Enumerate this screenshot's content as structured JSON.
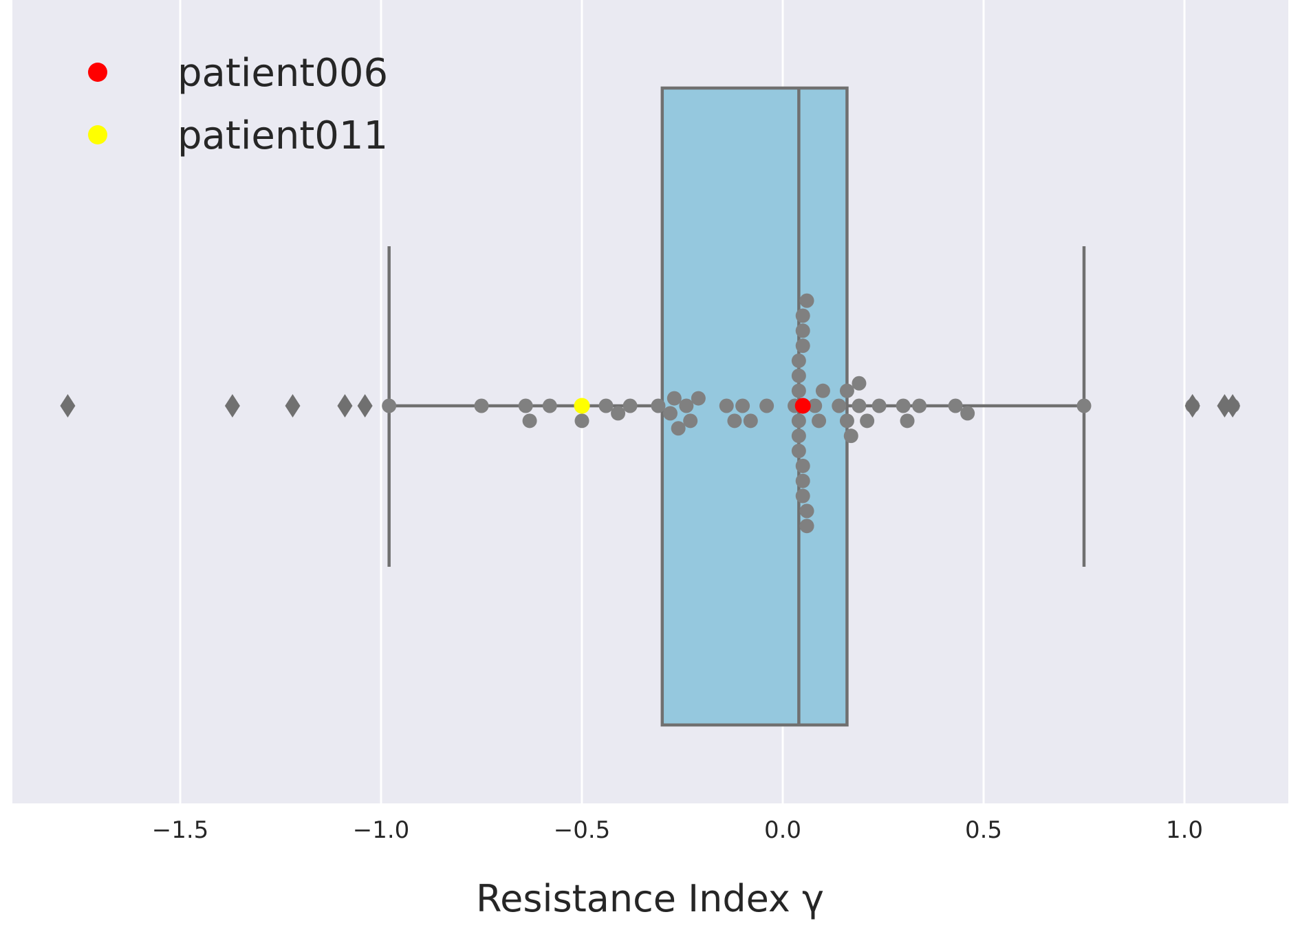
{
  "chart_data": {
    "type": "box",
    "orientation": "horizontal",
    "xlabel": "Resistance Index γ",
    "xlim": [
      -1.88,
      1.26
    ],
    "xticks": [
      -1.5,
      -1.0,
      -0.5,
      0.0,
      0.5,
      1.0
    ],
    "xtick_labels": [
      "−1.5",
      "−1.0",
      "−0.5",
      "0.0",
      "0.5",
      "1.0"
    ],
    "grid": true,
    "legend_position": "top-left",
    "legend": [
      {
        "label": "patient006",
        "color": "#ff0000"
      },
      {
        "label": "patient011",
        "color": "#ffff00"
      }
    ],
    "box": {
      "q1": -0.3,
      "median": 0.04,
      "q3": 0.16,
      "whisker_low": -0.98,
      "whisker_high": 0.75,
      "fill": "#95c8de",
      "edge": "#707070"
    },
    "outliers": [
      -1.78,
      -1.37,
      -1.22,
      -1.09,
      -1.04,
      1.02,
      1.02,
      1.1,
      1.12
    ],
    "points": [
      -0.98,
      -0.75,
      -0.64,
      -0.63,
      -0.58,
      -0.5,
      -0.5,
      -0.44,
      -0.41,
      -0.38,
      -0.31,
      -0.28,
      -0.27,
      -0.26,
      -0.24,
      -0.23,
      -0.21,
      -0.14,
      -0.12,
      -0.1,
      -0.08,
      -0.04,
      0.03,
      0.04,
      0.04,
      0.04,
      0.04,
      0.04,
      0.04,
      0.05,
      0.05,
      0.05,
      0.05,
      0.05,
      0.05,
      0.06,
      0.06,
      0.06,
      0.08,
      0.09,
      0.1,
      0.14,
      0.16,
      0.16,
      0.17,
      0.19,
      0.19,
      0.21,
      0.24,
      0.3,
      0.31,
      0.34,
      0.43,
      0.46,
      0.75,
      1.02,
      1.12
    ],
    "highlights": [
      {
        "name": "patient006",
        "x": 0.05,
        "color": "#ff0000"
      },
      {
        "name": "patient011",
        "x": -0.5,
        "color": "#ffff00"
      }
    ],
    "point_color": "#808080"
  }
}
